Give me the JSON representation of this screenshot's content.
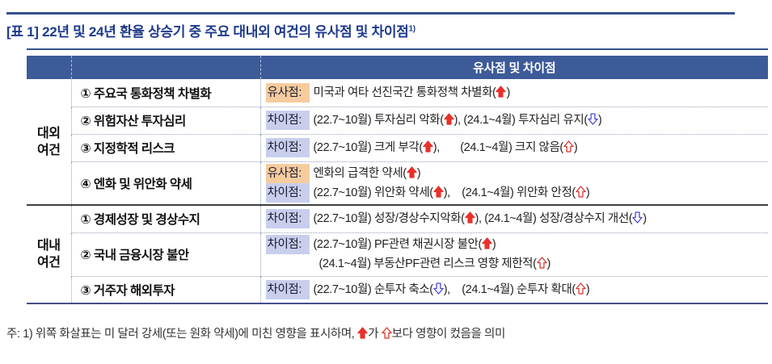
{
  "title": {
    "text": "[표 1] 22년 및 24년 환율 상승기 중 주요 대내외 여건의 유사점 및 차이점",
    "footnote_ref": "1)"
  },
  "table": {
    "header": "유사점 및 차이점",
    "tag_labels": {
      "similar": "유사점:",
      "diff": "차이점:"
    },
    "groups": [
      {
        "label": "대외 여건",
        "rows": 4
      },
      {
        "label": "대내 여건",
        "rows": 3
      }
    ],
    "rows": [
      {
        "group": 0,
        "item": "① 주요국 통화정책 차별화",
        "lines": [
          {
            "tag": "similar",
            "text": "미국과 여타 선진국간 통화정책 차별화(⬆)"
          }
        ]
      },
      {
        "group": 0,
        "item": "② 위험자산 투자심리",
        "lines": [
          {
            "tag": "diff",
            "text": "(22.7~10월) 투자심리 악화(⬆), (24.1~4월) 투자심리 유지(⇩)"
          }
        ]
      },
      {
        "group": 0,
        "item": "③ 지정학적 리스크",
        "lines": [
          {
            "tag": "diff",
            "text": "(22.7~10월) 크게 부각(⬆),       (24.1~4월) 크지 않음(⇧)"
          }
        ]
      },
      {
        "group": 0,
        "item": "④ 엔화 및 위안화 약세",
        "lines": [
          {
            "tag": "similar",
            "text": "엔화의 급격한 약세(⬆)"
          },
          {
            "tag": "diff",
            "text": "(22.7~10월) 위안화 약세(⬆),    (24.1~4월) 위안화 안정(⇧)"
          }
        ]
      },
      {
        "group": 1,
        "item": "① 경제성장 및 경상수지",
        "lines": [
          {
            "tag": "diff",
            "text": "(22.7~10월) 성장/경상수지악화(⬆), (24.1~4월) 성장/경상수지 개선(⇩)"
          }
        ]
      },
      {
        "group": 1,
        "item": "② 국내 금융시장 불안",
        "lines": [
          {
            "tag": "diff",
            "text": "(22.7~10월) PF관련 채권시장 불안(⬆)"
          },
          {
            "tag": null,
            "text": "(24.1~4월) 부동산PF관련 리스크 영향 제한적(⇧)"
          }
        ]
      },
      {
        "group": 1,
        "item": "③ 거주자 해외투자",
        "lines": [
          {
            "tag": "diff",
            "text": "(22.7~10월) 순투자 축소(⇩),    (24.1~4월) 순투자 확대(⇧)"
          }
        ]
      }
    ]
  },
  "footnote": "주: 1) 위쪽 화살표는 미 달러 강세(또는 원화 약세)에 미친 영향을 표시하며, ⬆가 ⇧보다 영향이 컸음을 의미",
  "icons": {
    "⬆": "up-arrow-filled-icon",
    "⇧": "up-arrow-hollow-icon",
    "⇩": "down-arrow-hollow-icon"
  },
  "colors": {
    "accent_navy": "#36508F",
    "title_navy": "#1E3A8C",
    "header_bg": "#3D5A99",
    "similar_highlight": "#F6CC9F",
    "diff_highlight": "#C8CEEC",
    "arrow_strong": "#E8312A",
    "arrow_weak_outline": "#D9352E",
    "arrow_down_outline": "#4B48D6"
  }
}
